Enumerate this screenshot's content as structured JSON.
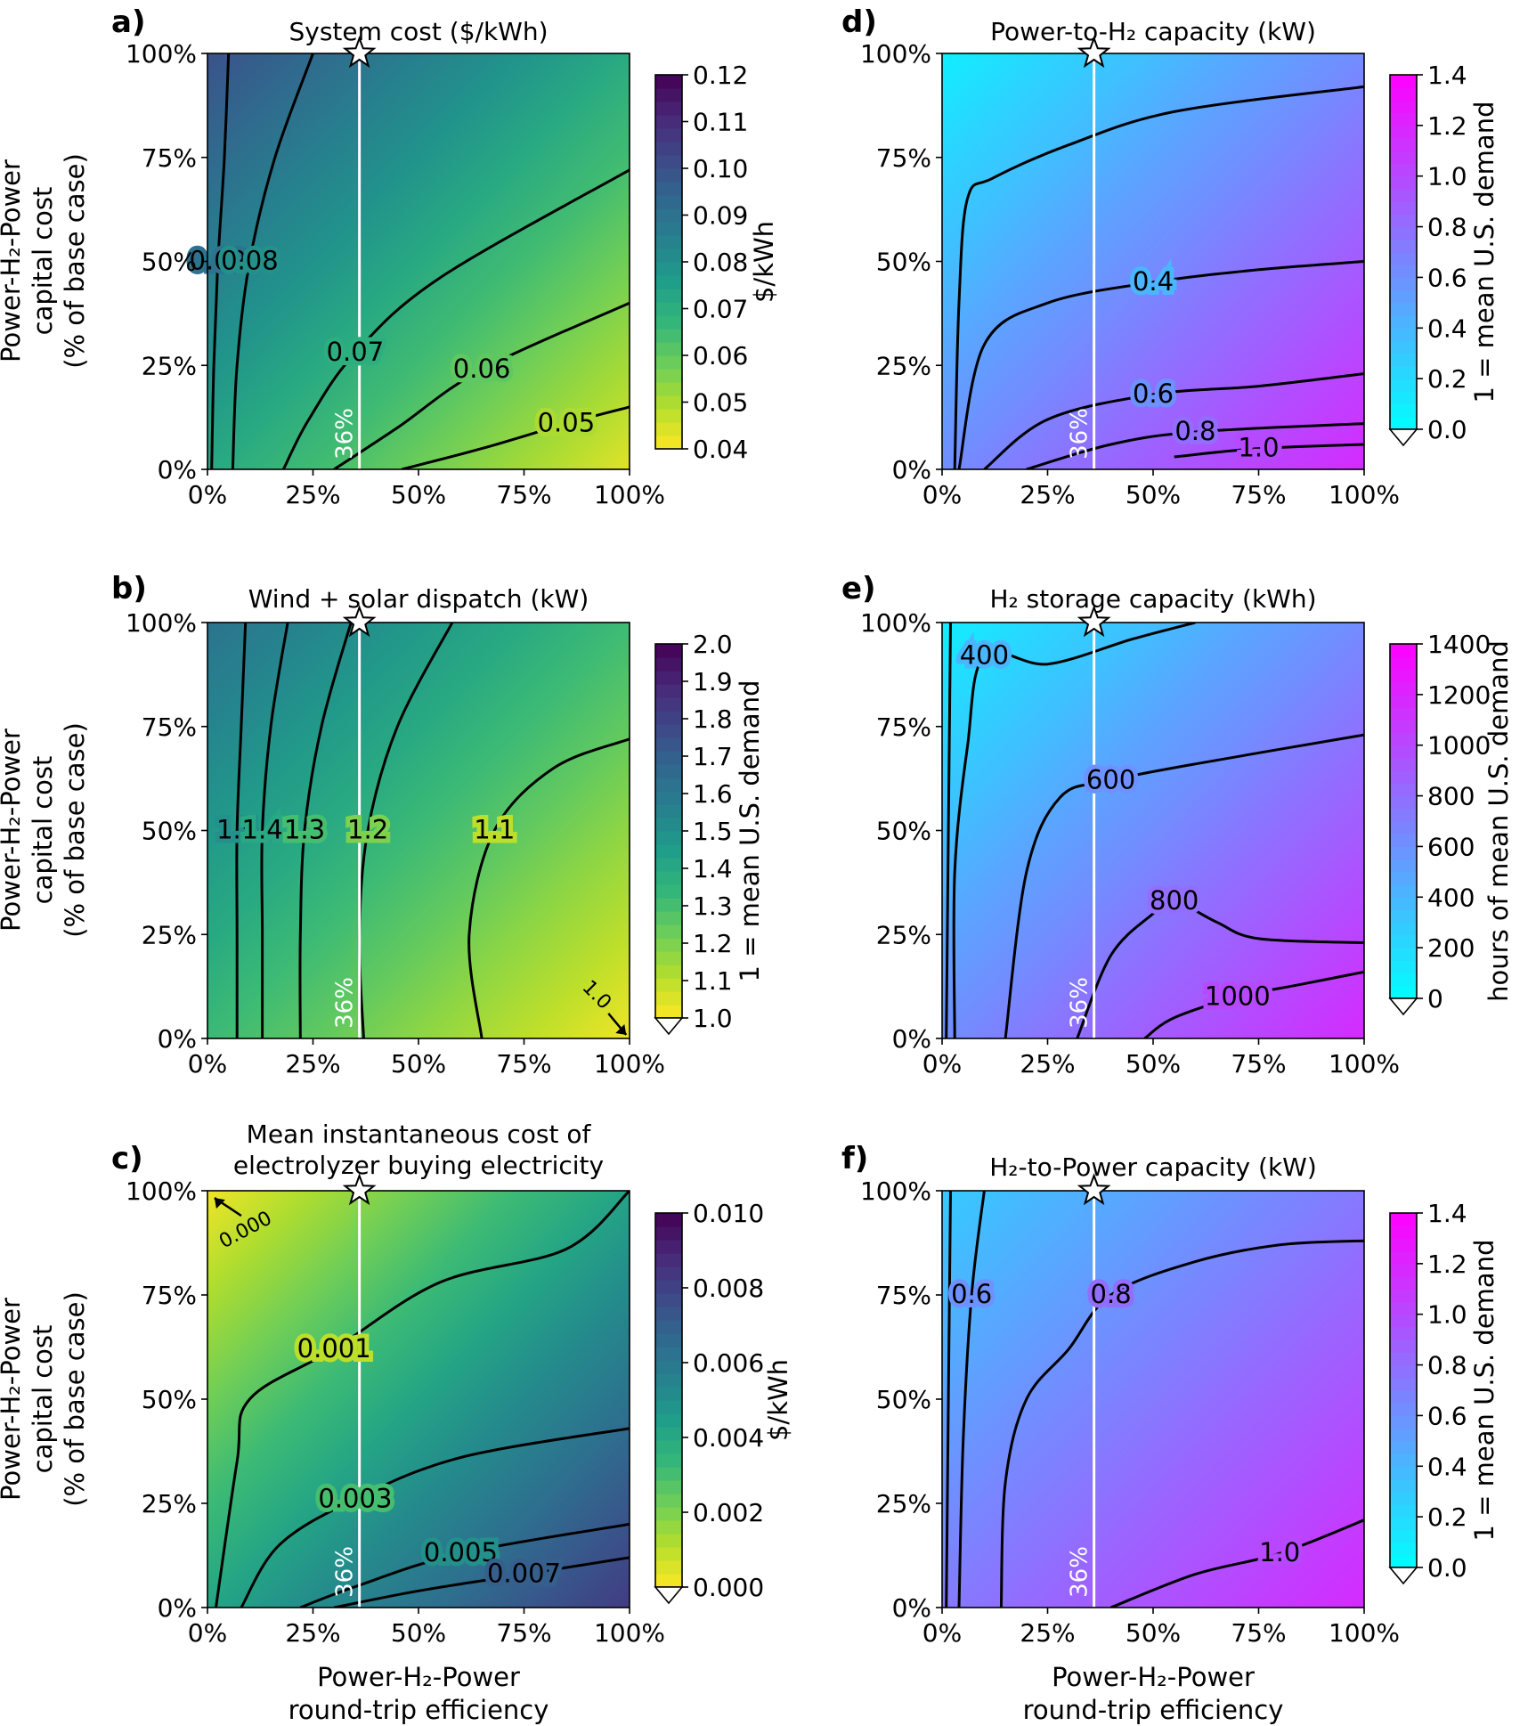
{
  "figure": {
    "shared_x_label": [
      "Power-H₂-Power",
      "round-trip efficiency"
    ],
    "shared_y_label": [
      "Power-H₂-Power",
      "capital cost",
      "(% of base case)"
    ],
    "x_ticks": [
      "0%",
      "25%",
      "50%",
      "75%",
      "100%"
    ],
    "y_ticks": [
      "0%",
      "25%",
      "50%",
      "75%",
      "100%"
    ],
    "base_case_marker": {
      "x": 36,
      "y": 100,
      "shape": "star"
    },
    "efficiency_line": {
      "x": 36,
      "label": "36%",
      "color": "#ffffff"
    }
  },
  "chart_data": [
    {
      "id": "a",
      "type": "heatmap",
      "letter": "a)",
      "title": "System cost ($/kWh)",
      "colormap": "viridis",
      "xlim": [
        0,
        100
      ],
      "ylim": [
        0,
        100
      ],
      "contours": [
        {
          "level": 0.09,
          "label": "0.09",
          "points": [
            [
              1,
              0
            ],
            [
              1.5,
              25
            ],
            [
              2.5,
              50
            ],
            [
              4,
              75
            ],
            [
              5,
              100
            ]
          ]
        },
        {
          "level": 0.08,
          "label": "0.08",
          "points": [
            [
              6,
              0
            ],
            [
              7,
              25
            ],
            [
              10,
              50
            ],
            [
              16,
              75
            ],
            [
              25,
              100
            ]
          ]
        },
        {
          "level": 0.07,
          "label": "0.07",
          "points": [
            [
              18,
              0
            ],
            [
              24,
              12
            ],
            [
              35,
              28
            ],
            [
              55,
              46
            ],
            [
              100,
              72
            ]
          ]
        },
        {
          "level": 0.06,
          "label": "0.06",
          "points": [
            [
              30,
              0
            ],
            [
              45,
              10
            ],
            [
              65,
              24
            ],
            [
              100,
              40
            ]
          ]
        },
        {
          "level": 0.05,
          "label": "0.05",
          "points": [
            [
              46,
              0
            ],
            [
              65,
              5
            ],
            [
              85,
              11
            ],
            [
              100,
              15
            ]
          ]
        }
      ],
      "colorbar": {
        "label": "$/kWh",
        "ticks": [
          "0.04",
          "0.05",
          "0.06",
          "0.07",
          "0.08",
          "0.09",
          "0.10",
          "0.11",
          "0.12"
        ],
        "range": [
          0.04,
          0.12
        ],
        "extend_min": false
      }
    },
    {
      "id": "b",
      "type": "heatmap",
      "letter": "b)",
      "title": "Wind + solar dispatch (kW)",
      "colormap": "viridis",
      "xlim": [
        0,
        100
      ],
      "ylim": [
        0,
        100
      ],
      "contours": [
        {
          "level": 1.5,
          "label": "1.5",
          "points": [
            [
              7,
              0
            ],
            [
              7,
              25
            ],
            [
              7,
              50
            ],
            [
              8,
              75
            ],
            [
              9,
              100
            ]
          ]
        },
        {
          "level": 1.4,
          "label": "1.4",
          "points": [
            [
              13,
              0
            ],
            [
              13,
              25
            ],
            [
              13,
              50
            ],
            [
              15,
              75
            ],
            [
              19,
              100
            ]
          ]
        },
        {
          "level": 1.3,
          "label": "1.3",
          "points": [
            [
              22,
              0
            ],
            [
              22,
              25
            ],
            [
              23,
              50
            ],
            [
              27,
              75
            ],
            [
              34,
              100
            ]
          ]
        },
        {
          "level": 1.2,
          "label": "1.2",
          "points": [
            [
              37,
              0
            ],
            [
              36,
              25
            ],
            [
              38,
              50
            ],
            [
              45,
              75
            ],
            [
              58,
              100
            ]
          ]
        },
        {
          "level": 1.1,
          "label": "1.1",
          "points": [
            [
              65,
              0
            ],
            [
              62,
              25
            ],
            [
              68,
              50
            ],
            [
              82,
              65
            ],
            [
              100,
              72
            ]
          ]
        }
      ],
      "notes": [
        {
          "label": "1.0",
          "x": 95,
          "y": 6
        }
      ],
      "colorbar": {
        "label": "1 = mean U.S. demand",
        "ticks": [
          "1.0",
          "1.1",
          "1.2",
          "1.3",
          "1.4",
          "1.5",
          "1.6",
          "1.7",
          "1.8",
          "1.9",
          "2.0"
        ],
        "range": [
          1.0,
          2.0
        ],
        "extend_min": true
      }
    },
    {
      "id": "c",
      "type": "heatmap",
      "letter": "c)",
      "title": "Mean instantaneous cost of electrolyzer buying electricity",
      "title_lines": [
        "Mean instantaneous cost of",
        "electrolyzer buying electricity"
      ],
      "colormap": "viridis",
      "xlim": [
        0,
        100
      ],
      "ylim": [
        0,
        100
      ],
      "contours": [
        {
          "level": 0.001,
          "label": "0.001",
          "points": [
            [
              2,
              0
            ],
            [
              7,
              35
            ],
            [
              10,
              50
            ],
            [
              30,
              62
            ],
            [
              55,
              78
            ],
            [
              85,
              86
            ],
            [
              100,
              100
            ]
          ]
        },
        {
          "level": 0.003,
          "label": "0.003",
          "points": [
            [
              8,
              0
            ],
            [
              17,
              15
            ],
            [
              35,
              26
            ],
            [
              60,
              36
            ],
            [
              100,
              43
            ]
          ]
        },
        {
          "level": 0.005,
          "label": "0.005",
          "points": [
            [
              22,
              0
            ],
            [
              35,
              5
            ],
            [
              60,
              13
            ],
            [
              100,
              20
            ]
          ]
        },
        {
          "level": 0.007,
          "label": "0.007",
          "points": [
            [
              30,
              0
            ],
            [
              50,
              4
            ],
            [
              75,
              8
            ],
            [
              100,
              12
            ]
          ]
        }
      ],
      "notes": [
        {
          "label": "0.000",
          "x": 8,
          "y": 94
        }
      ],
      "colorbar": {
        "label": "$/kWh",
        "ticks": [
          "0.000",
          "0.002",
          "0.004",
          "0.006",
          "0.008",
          "0.010"
        ],
        "range": [
          0.0,
          0.01
        ],
        "extend_min": true
      }
    },
    {
      "id": "d",
      "type": "heatmap",
      "letter": "d)",
      "title": "Power-to-H₂ capacity (kW)",
      "colormap": "cool",
      "xlim": [
        0,
        100
      ],
      "ylim": [
        0,
        100
      ],
      "contours": [
        {
          "level": 0.2,
          "label": "",
          "points": [
            [
              3,
              0
            ],
            [
              4,
              40
            ],
            [
              6,
              65
            ],
            [
              12,
              70
            ],
            [
              30,
              78
            ],
            [
              55,
              86
            ],
            [
              100,
              92
            ]
          ]
        },
        {
          "level": 0.4,
          "label": "0.4",
          "points": [
            [
              4,
              0
            ],
            [
              10,
              30
            ],
            [
              25,
              40
            ],
            [
              50,
              45
            ],
            [
              75,
              48
            ],
            [
              100,
              50
            ]
          ]
        },
        {
          "level": 0.6,
          "label": "0.6",
          "points": [
            [
              10,
              0
            ],
            [
              25,
              12
            ],
            [
              50,
              18
            ],
            [
              75,
              20
            ],
            [
              100,
              23
            ]
          ]
        },
        {
          "level": 0.8,
          "label": "0.8",
          "points": [
            [
              20,
              0
            ],
            [
              40,
              6
            ],
            [
              60,
              9
            ],
            [
              100,
              11
            ]
          ]
        },
        {
          "level": 1.0,
          "label": "1.0",
          "points": [
            [
              55,
              3
            ],
            [
              75,
              5
            ],
            [
              100,
              6
            ]
          ]
        }
      ],
      "colorbar": {
        "label": "1 = mean U.S. demand",
        "ticks": [
          "0.0",
          "0.2",
          "0.4",
          "0.6",
          "0.8",
          "1.0",
          "1.2",
          "1.4"
        ],
        "range": [
          0.0,
          1.4
        ],
        "extend_min": true
      }
    },
    {
      "id": "e",
      "type": "heatmap",
      "letter": "e)",
      "title": "H₂ storage capacity (kWh)",
      "colormap": "cool",
      "xlim": [
        0,
        100
      ],
      "ylim": [
        0,
        100
      ],
      "contours": [
        {
          "level": 200,
          "label": "",
          "points": [
            [
              1,
              0
            ],
            [
              1.5,
              50
            ],
            [
              2,
              100
            ]
          ]
        },
        {
          "level": 400,
          "label": "400",
          "points": [
            [
              3,
              0
            ],
            [
              3,
              40
            ],
            [
              6,
              70
            ],
            [
              10,
              92
            ],
            [
              25,
              90
            ],
            [
              45,
              96
            ],
            [
              60,
              100
            ]
          ]
        },
        {
          "level": 600,
          "label": "600",
          "points": [
            [
              15,
              0
            ],
            [
              20,
              40
            ],
            [
              28,
              58
            ],
            [
              40,
              62
            ],
            [
              60,
              66
            ],
            [
              100,
              73
            ]
          ]
        },
        {
          "level": 800,
          "label": "800",
          "points": [
            [
              32,
              0
            ],
            [
              40,
              20
            ],
            [
              50,
              30
            ],
            [
              55,
              33
            ],
            [
              65,
              28
            ],
            [
              75,
              24
            ],
            [
              100,
              23
            ]
          ]
        },
        {
          "level": 1000,
          "label": "1000",
          "points": [
            [
              48,
              0
            ],
            [
              55,
              5
            ],
            [
              70,
              10
            ],
            [
              85,
              13
            ],
            [
              100,
              16
            ]
          ]
        }
      ],
      "colorbar": {
        "label": "hours of mean U.S. demand",
        "ticks": [
          "0",
          "200",
          "400",
          "600",
          "800",
          "1000",
          "1200",
          "1400"
        ],
        "range": [
          0,
          1400
        ],
        "extend_min": true
      }
    },
    {
      "id": "f",
      "type": "heatmap",
      "letter": "f)",
      "title": "H₂-to-Power capacity (kW)",
      "colormap": "cool",
      "xlim": [
        0,
        100
      ],
      "ylim": [
        0,
        100
      ],
      "contours": [
        {
          "level": 0.4,
          "label": "",
          "points": [
            [
              1,
              0
            ],
            [
              1.5,
              50
            ],
            [
              2,
              100
            ]
          ]
        },
        {
          "level": 0.6,
          "label": "0.6",
          "points": [
            [
              4,
              0
            ],
            [
              5,
              40
            ],
            [
              7,
              75
            ],
            [
              10,
              100
            ]
          ]
        },
        {
          "level": 0.8,
          "label": "0.8",
          "points": [
            [
              14,
              0
            ],
            [
              15,
              30
            ],
            [
              20,
              50
            ],
            [
              30,
              62
            ],
            [
              40,
              75
            ],
            [
              60,
              83
            ],
            [
              80,
              87
            ],
            [
              100,
              88
            ]
          ]
        },
        {
          "level": 1.0,
          "label": "1.0",
          "points": [
            [
              40,
              0
            ],
            [
              60,
              8
            ],
            [
              80,
              13
            ],
            [
              100,
              21
            ]
          ]
        }
      ],
      "colorbar": {
        "label": "1 = mean U.S. demand",
        "ticks": [
          "0.0",
          "0.2",
          "0.4",
          "0.6",
          "0.8",
          "1.0",
          "1.2",
          "1.4"
        ],
        "range": [
          0.0,
          1.4
        ],
        "extend_min": true
      }
    }
  ]
}
